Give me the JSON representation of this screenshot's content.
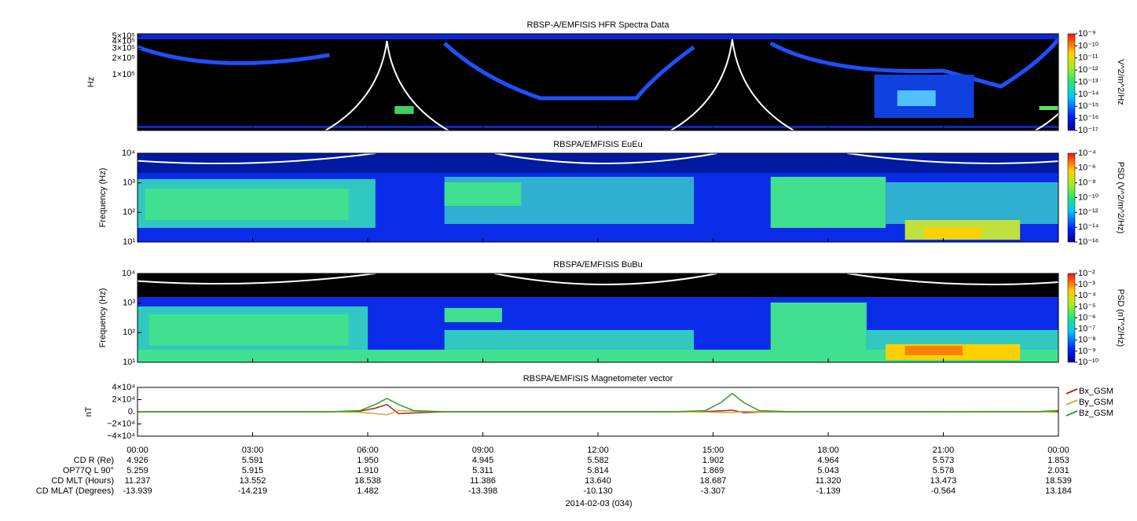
{
  "time_axis": {
    "xlim": [
      0,
      24
    ],
    "xticks": [
      {
        "value": 0,
        "label": "00:00"
      },
      {
        "value": 3,
        "label": "03:00"
      },
      {
        "value": 6,
        "label": "06:00"
      },
      {
        "value": 9,
        "label": "09:00"
      },
      {
        "value": 12,
        "label": "12:00"
      },
      {
        "value": 15,
        "label": "15:00"
      },
      {
        "value": 18,
        "label": "18:00"
      },
      {
        "value": 21,
        "label": "21:00"
      },
      {
        "value": 24,
        "label": "00:00"
      }
    ],
    "date": "2014-02-03 (034)"
  },
  "ephemeris": {
    "rows": [
      {
        "label": "CD R (Re)",
        "values": [
          "4.926",
          "5.591",
          "1.950",
          "4.945",
          "5.582",
          "1.902",
          "4.964",
          "5.573",
          "1.853"
        ]
      },
      {
        "label": "OP77Q L 90°",
        "values": [
          "5.259",
          "5.915",
          "1.910",
          "5.311",
          "5.814",
          "1.869",
          "5.043",
          "5.578",
          "2.031"
        ]
      },
      {
        "label": "CD MLT (Hours)",
        "values": [
          "11.237",
          "13.552",
          "18.538",
          "11.386",
          "13.640",
          "18.687",
          "11.320",
          "13.473",
          "18.539"
        ]
      },
      {
        "label": "CD MLAT (Degrees)",
        "values": [
          "-13.939",
          "-14.219",
          "1.482",
          "-13.398",
          "-10.130",
          "-3.307",
          "-1.139",
          "-0.564",
          "13.184"
        ]
      }
    ]
  },
  "chart_data": [
    {
      "type": "spectrogram",
      "title": "RBSP-A/EMFISIS  HFR Spectra Data",
      "y_label": "Hz",
      "ylog": true,
      "ylim": [
        10000,
        550000
      ],
      "yticks": [
        {
          "value": 100000,
          "label": "1×10⁵"
        },
        {
          "value": 200000,
          "label": "2×10⁵"
        },
        {
          "value": 300000,
          "label": "3×10⁵"
        },
        {
          "value": 400000,
          "label": "4×10⁵"
        },
        {
          "value": 500000,
          "label": "5×10⁵"
        }
      ],
      "colorbar_label": "V^2/m^2/Hz",
      "zlog": true,
      "zlim": [
        1e-17,
        1e-09
      ],
      "zticks": [
        {
          "value": 1e-09,
          "label": "10⁻⁹"
        },
        {
          "value": 1e-10,
          "label": "10⁻¹⁰"
        },
        {
          "value": 1e-11,
          "label": "10⁻¹¹"
        },
        {
          "value": 1e-12,
          "label": "10⁻¹²"
        },
        {
          "value": 1e-13,
          "label": "10⁻¹³"
        },
        {
          "value": 1e-14,
          "label": "10⁻¹⁴"
        },
        {
          "value": 1e-15,
          "label": "10⁻¹⁵"
        },
        {
          "value": 1e-16,
          "label": "10⁻¹⁶"
        },
        {
          "value": 1e-17,
          "label": "10⁻¹⁷"
        }
      ]
    },
    {
      "type": "spectrogram",
      "title": "RBSPA/EMFISIS  EuEu",
      "y_label": "Frequency (Hz)",
      "ylog": true,
      "ylim": [
        10,
        10000
      ],
      "yticks": [
        {
          "value": 10,
          "label": "10¹"
        },
        {
          "value": 100,
          "label": "10²"
        },
        {
          "value": 1000,
          "label": "10³"
        },
        {
          "value": 10000,
          "label": "10⁴"
        }
      ],
      "colorbar_label": "PSD (V^2/m^2/Hz)",
      "zlog": true,
      "zlim": [
        1e-16,
        0.0001
      ],
      "zticks": [
        {
          "value": 0.0001,
          "label": "10⁻⁴"
        },
        {
          "value": 1e-06,
          "label": "10⁻⁶"
        },
        {
          "value": 1e-08,
          "label": "10⁻⁸"
        },
        {
          "value": 1e-10,
          "label": "10⁻¹⁰"
        },
        {
          "value": 1e-12,
          "label": "10⁻¹²"
        },
        {
          "value": 1e-14,
          "label": "10⁻¹⁴"
        },
        {
          "value": 1e-16,
          "label": "10⁻¹⁶"
        }
      ]
    },
    {
      "type": "spectrogram",
      "title": "RBSPA/EMFISIS  BuBu",
      "y_label": "Frequency (Hz)",
      "ylog": true,
      "ylim": [
        10,
        10000
      ],
      "yticks": [
        {
          "value": 10,
          "label": "10¹"
        },
        {
          "value": 100,
          "label": "10²"
        },
        {
          "value": 1000,
          "label": "10³"
        },
        {
          "value": 10000,
          "label": "10⁴"
        }
      ],
      "colorbar_label": "PSD (nT^2/Hz)",
      "zlog": true,
      "zlim": [
        1e-10,
        0.01
      ],
      "zticks": [
        {
          "value": 0.01,
          "label": "10⁻²"
        },
        {
          "value": 0.001,
          "label": "10⁻³"
        },
        {
          "value": 0.0001,
          "label": "10⁻⁴"
        },
        {
          "value": 1e-05,
          "label": "10⁻⁵"
        },
        {
          "value": 1e-06,
          "label": "10⁻⁶"
        },
        {
          "value": 1e-07,
          "label": "10⁻⁷"
        },
        {
          "value": 1e-08,
          "label": "10⁻⁸"
        },
        {
          "value": 1e-09,
          "label": "10⁻⁹"
        },
        {
          "value": 1e-10,
          "label": "10⁻¹⁰"
        }
      ]
    },
    {
      "type": "line",
      "title": "RBSPA/EMFISIS  Magnetometer vector",
      "y_label": "nT",
      "ylim": [
        -40000,
        40000
      ],
      "yticks": [
        {
          "value": 40000,
          "label": "4×10⁴"
        },
        {
          "value": 20000,
          "label": "2×10⁴"
        },
        {
          "value": 0,
          "label": "0."
        },
        {
          "value": -20000,
          "label": "−2×10⁴"
        },
        {
          "value": -40000,
          "label": "−4×10⁴"
        }
      ],
      "x": [
        0,
        3,
        5,
        5.8,
        6.2,
        6.5,
        6.8,
        7.2,
        8,
        12,
        14,
        14.8,
        15.2,
        15.5,
        15.8,
        16.2,
        17,
        21,
        23.5,
        24
      ],
      "series": [
        {
          "name": "Bx_GSM",
          "color": "#a0281e",
          "values": [
            0,
            0,
            0,
            1000,
            6000,
            12000,
            -3000,
            -2000,
            0,
            0,
            0,
            500,
            1500,
            2500,
            -1500,
            -500,
            0,
            0,
            0,
            1000
          ]
        },
        {
          "name": "By_GSM",
          "color": "#d4a838",
          "values": [
            0,
            0,
            0,
            -1000,
            -3000,
            -5000,
            2000,
            1000,
            0,
            0,
            0,
            -500,
            -1000,
            -1500,
            500,
            0,
            0,
            0,
            0,
            -1000
          ]
        },
        {
          "name": "Bz_GSM",
          "color": "#2ca02c",
          "values": [
            0,
            0,
            0,
            2000,
            12000,
            22000,
            12000,
            2000,
            0,
            0,
            0,
            2000,
            15000,
            30000,
            15000,
            2000,
            0,
            0,
            500,
            2000
          ]
        }
      ]
    }
  ]
}
